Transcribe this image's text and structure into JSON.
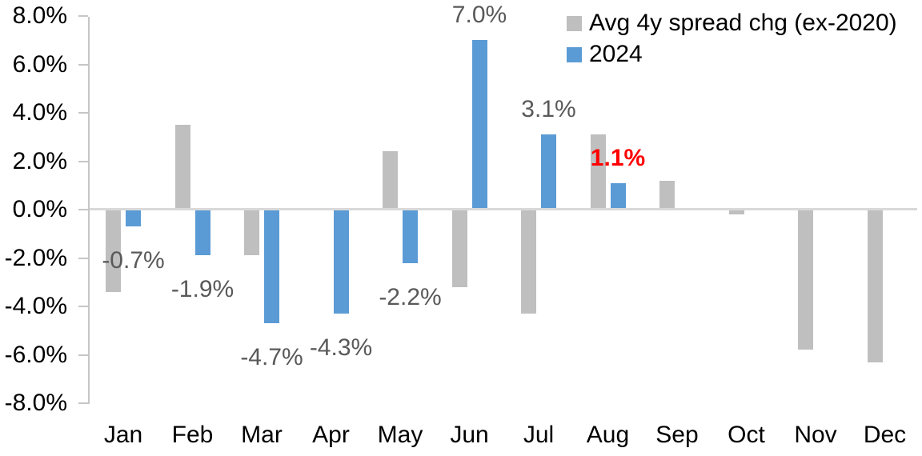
{
  "chart_data": {
    "type": "bar",
    "title": "",
    "categories": [
      "Jan",
      "Feb",
      "Mar",
      "Apr",
      "May",
      "Jun",
      "Jul",
      "Aug",
      "Sep",
      "Oct",
      "Nov",
      "Dec"
    ],
    "series": [
      {
        "name": "Avg 4y spread chg (ex-2020)",
        "color": "#BFBFBF",
        "values": [
          -3.4,
          3.5,
          -1.9,
          0.0,
          2.4,
          -3.2,
          -4.3,
          3.1,
          1.2,
          -0.2,
          -5.8,
          -6.3
        ]
      },
      {
        "name": "2024",
        "color": "#5B9BD5",
        "values": [
          -0.7,
          -1.9,
          -4.7,
          -4.3,
          -2.2,
          7.0,
          3.1,
          1.1,
          null,
          null,
          null,
          null
        ],
        "data_labels": [
          "-0.7%",
          "-1.9%",
          "-4.7%",
          "-4.3%",
          "-2.2%",
          "7.0%",
          "3.1%",
          "1.1%",
          null,
          null,
          null,
          null
        ]
      }
    ],
    "highlight": {
      "category": "Aug",
      "label": "1.1%",
      "color": "#FF0000",
      "bold": true
    },
    "y_axis": {
      "ticks": [
        "8.0%",
        "6.0%",
        "4.0%",
        "2.0%",
        "0.0%",
        "-2.0%",
        "-4.0%",
        "-6.0%",
        "-8.0%"
      ],
      "min": -8,
      "max": 8,
      "step": 2,
      "format": "percent"
    },
    "x_axis": {
      "label": ""
    },
    "legend_position": "top-right",
    "grid": "zero-line-only",
    "colors": {
      "data_label_text": "#595959",
      "axis_text": "#000000",
      "axis_line": "#C6C6C6",
      "zero_line": "#D9D9D9",
      "background": "#FFFFFF"
    }
  }
}
